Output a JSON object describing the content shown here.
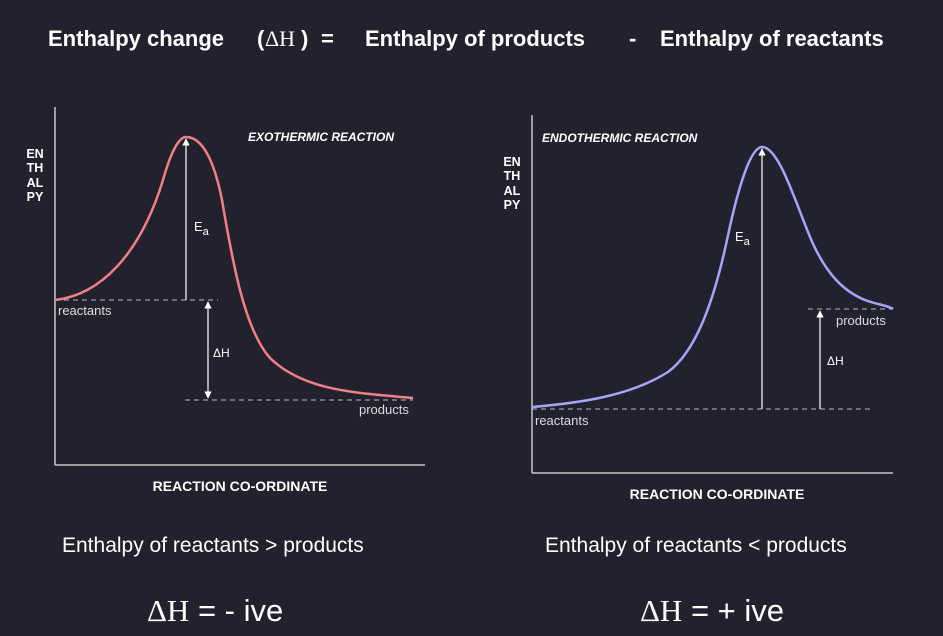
{
  "header": {
    "term": "Enthalpy change",
    "paren_open": "(",
    "delta_symbol": "ΔH",
    "paren_close": ")",
    "equals": "=",
    "products_term": "Enthalpy of products",
    "minus": "-",
    "reactants_term": "Enthalpy of reactants"
  },
  "exothermic": {
    "title": "EXOTHERMIC  REACTION",
    "y_axis_label": "ENTHALPY",
    "x_axis_label": "REACTION  CO-ORDINATE",
    "reactants_label": "reactants",
    "products_label": "products",
    "activation_label": "E",
    "activation_subscript": "a",
    "delta_label": "ΔH",
    "curve_color": "#f07f86",
    "caption": "Enthalpy of reactants > products",
    "sign_symbol": "ΔH",
    "sign_text": "=  - ive"
  },
  "endothermic": {
    "title": "ENDOTHERMIC  REACTION",
    "y_axis_label": "ENTHALPY",
    "x_axis_label": "REACTION  CO-ORDINATE",
    "reactants_label": "reactants",
    "products_label": "products",
    "activation_label": "E",
    "activation_subscript": "a",
    "delta_label": "ΔH",
    "curve_color": "#a6a4f6",
    "caption": "Enthalpy of reactants < products",
    "sign_symbol": "ΔH",
    "sign_text": "=  + ive"
  }
}
